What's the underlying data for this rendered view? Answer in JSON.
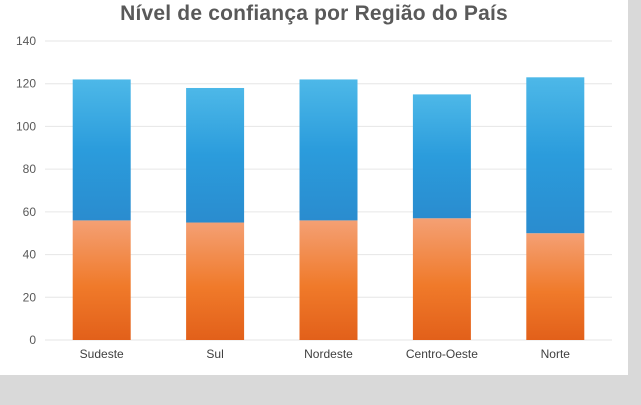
{
  "chart_data": {
    "type": "bar",
    "stacked": true,
    "title": "Nível de confiança por Região do País",
    "xlabel": "",
    "ylabel": "",
    "ylim": [
      0,
      140
    ],
    "yticks": [
      "0",
      "20",
      "40",
      "60",
      "80",
      "100",
      "120",
      "140"
    ],
    "grid": true,
    "categories": [
      "Sudeste",
      "Sul",
      "Nordeste",
      "Centro-Oeste",
      "Norte"
    ],
    "series": [
      {
        "values": [
          56,
          55,
          56,
          57,
          50
        ],
        "color": "#f07a2a"
      },
      {
        "values": [
          66,
          63,
          66,
          58,
          73
        ],
        "color": "#2b9cdc"
      }
    ]
  },
  "colors": {
    "background": "#d9d9d9",
    "card": "#ffffff",
    "grid": "#e6e6e6",
    "title": "#595959"
  }
}
